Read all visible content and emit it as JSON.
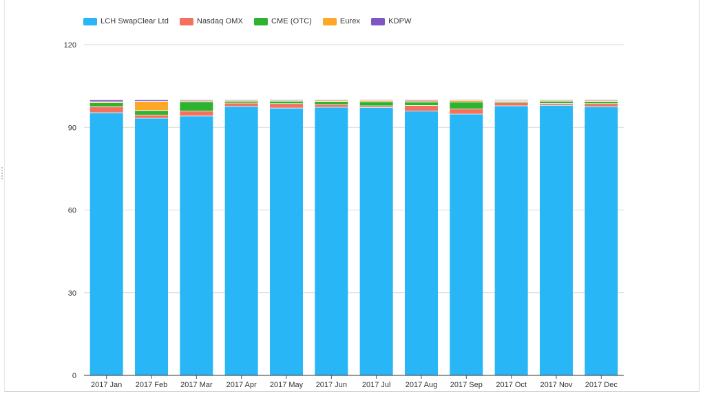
{
  "chart_data": {
    "type": "bar",
    "stacked": true,
    "title": "",
    "xlabel": "",
    "ylabel": "",
    "ylim": [
      0,
      120
    ],
    "yticks": [
      0,
      30,
      60,
      90,
      120
    ],
    "grid": true,
    "legend_position": "top-left",
    "categories": [
      "2017 Jan",
      "2017 Feb",
      "2017 Mar",
      "2017 Apr",
      "2017 May",
      "2017 Jun",
      "2017 Jul",
      "2017 Aug",
      "2017 Sep",
      "2017 Oct",
      "2017 Nov",
      "2017 Dec"
    ],
    "series": [
      {
        "name": "LCH SwapClear Ltd",
        "color": "#29b6f6",
        "values": [
          95.3,
          93.3,
          94.1,
          97.6,
          97.0,
          97.3,
          97.2,
          95.9,
          94.8,
          97.8,
          98.0,
          97.5
        ]
      },
      {
        "name": "Nasdaq OMX",
        "color": "#f4715f",
        "values": [
          2.2,
          1.2,
          1.8,
          1.2,
          1.6,
          1.0,
          0.6,
          2.0,
          1.9,
          1.1,
          0.7,
          1.1
        ]
      },
      {
        "name": "CME (OTC)",
        "color": "#2db32d",
        "values": [
          1.4,
          1.6,
          3.4,
          0.7,
          0.9,
          1.1,
          1.5,
          1.3,
          2.5,
          0.5,
          0.8,
          0.8
        ]
      },
      {
        "name": "Eurex",
        "color": "#ffa726",
        "values": [
          0.4,
          3.3,
          0.3,
          0.3,
          0.3,
          0.4,
          0.4,
          0.4,
          0.5,
          0.3,
          0.3,
          0.4
        ]
      },
      {
        "name": "KDPW",
        "color": "#7e57c2",
        "values": [
          0.6,
          0.5,
          0.3,
          0.2,
          0.2,
          0.2,
          0.2,
          0.3,
          0.2,
          0.2,
          0.2,
          0.2
        ]
      }
    ]
  }
}
